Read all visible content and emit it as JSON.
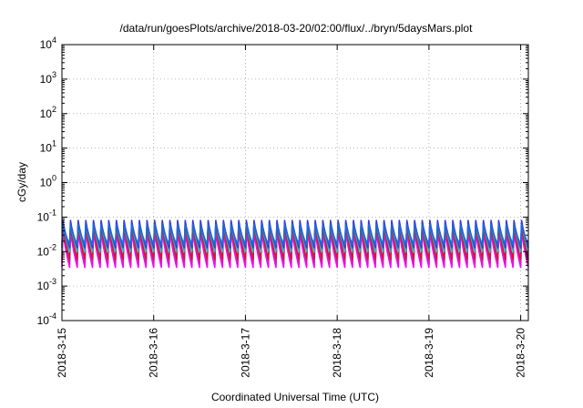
{
  "chart_data": {
    "type": "line",
    "title": "/data/run/goesPlots/archive/2018-03-20/02:00/flux/../bryn/5daysMars.plot",
    "xlabel": "Coordinated Universal Time (UTC)",
    "ylabel": "cGy/day",
    "yscale": "log",
    "ylim": [
      0.0001,
      10000
    ],
    "yticks": [
      {
        "base": "10",
        "exp": "4",
        "value": 10000
      },
      {
        "base": "10",
        "exp": "3",
        "value": 1000
      },
      {
        "base": "10",
        "exp": "2",
        "value": 100
      },
      {
        "base": "10",
        "exp": "1",
        "value": 10
      },
      {
        "base": "10",
        "exp": "0",
        "value": 1
      },
      {
        "base": "10",
        "exp": "-1",
        "value": 0.1
      },
      {
        "base": "10",
        "exp": "-2",
        "value": 0.01
      },
      {
        "base": "10",
        "exp": "-3",
        "value": 0.001
      },
      {
        "base": "10",
        "exp": "-4",
        "value": 0.0001
      }
    ],
    "xlim": [
      "2018-03-15 00:00",
      "2018-03-20 02:00"
    ],
    "xticks": [
      "2018-3-15",
      "2018-3-16",
      "2018-3-17",
      "2018-3-18",
      "2018-3-19",
      "2018-3-20"
    ],
    "grid": true,
    "legend": "none",
    "cycle_hours": 2,
    "series": [
      {
        "color": "#ff00ff",
        "peak": 0.04,
        "trough": 0.0035
      },
      {
        "color": "#d020c0",
        "peak": 0.05,
        "trough": 0.0045
      },
      {
        "color": "#cc1a3a",
        "peak": 0.06,
        "trough": 0.006
      },
      {
        "color": "#20b8b0",
        "peak": 0.07,
        "trough": 0.01
      },
      {
        "color": "#3a3adc",
        "peak": 0.08,
        "trough": 0.013
      },
      {
        "color": "#1e6ad8",
        "peak": 0.06,
        "trough": 0.016
      }
    ]
  }
}
